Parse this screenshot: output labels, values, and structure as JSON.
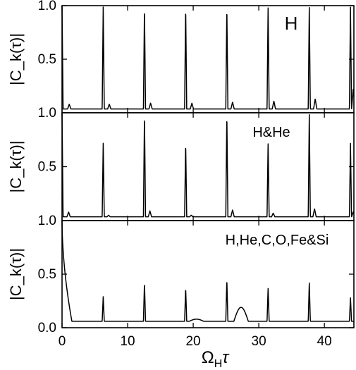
{
  "chart_data": {
    "type": "line",
    "xlabel": "Ω_Hτ",
    "xlabel_main": "Ω",
    "xlabel_sub": "H",
    "xlabel_tail": "τ",
    "xlim": [
      0,
      44.5
    ],
    "xticks": [
      0,
      10,
      20,
      30,
      40
    ],
    "xtick_labels": [
      "0",
      "10",
      "20",
      "30",
      "40"
    ],
    "shared_x_axis": true,
    "grid": false,
    "panels": [
      {
        "label": "H",
        "ylabel": "|C_k(τ)|",
        "ylim": [
          0,
          1
        ],
        "yticks": [
          0.5,
          1.0
        ],
        "ytick_labels": [
          "0.5",
          "1.0"
        ],
        "baseline": 0.035,
        "peaks": [
          {
            "x": 0.0,
            "y": 1.0
          },
          {
            "x": 6.28,
            "y": 0.99
          },
          {
            "x": 12.57,
            "y": 0.99
          },
          {
            "x": 18.85,
            "y": 0.99
          },
          {
            "x": 25.13,
            "y": 0.99
          },
          {
            "x": 31.42,
            "y": 0.99
          },
          {
            "x": 37.7,
            "y": 0.99
          },
          {
            "x": 43.98,
            "y": 0.99
          }
        ],
        "secondary_peaks": [
          {
            "x": 1.1,
            "y": 0.08
          },
          {
            "x": 7.2,
            "y": 0.08
          },
          {
            "x": 13.5,
            "y": 0.09
          },
          {
            "x": 19.8,
            "y": 0.09
          },
          {
            "x": 26.0,
            "y": 0.1
          },
          {
            "x": 32.3,
            "y": 0.11
          },
          {
            "x": 38.6,
            "y": 0.13
          },
          {
            "x": 44.4,
            "y": 0.22
          }
        ]
      },
      {
        "label": "H&He",
        "ylabel": "|C_k(τ)|",
        "ylim": [
          0,
          1
        ],
        "yticks": [
          0.5,
          1.0
        ],
        "ytick_labels": [
          "0.5",
          "1.0"
        ],
        "baseline": 0.035,
        "peaks": [
          {
            "x": 0.0,
            "y": 1.0
          },
          {
            "x": 6.28,
            "y": 0.72
          },
          {
            "x": 12.57,
            "y": 0.99
          },
          {
            "x": 18.85,
            "y": 0.72
          },
          {
            "x": 25.13,
            "y": 0.99
          },
          {
            "x": 31.42,
            "y": 0.72
          },
          {
            "x": 37.7,
            "y": 0.99
          },
          {
            "x": 43.98,
            "y": 0.72
          }
        ],
        "secondary_peaks": [
          {
            "x": 1.0,
            "y": 0.08
          },
          {
            "x": 7.1,
            "y": 0.05
          },
          {
            "x": 13.4,
            "y": 0.09
          },
          {
            "x": 19.7,
            "y": 0.05
          },
          {
            "x": 26.0,
            "y": 0.1
          },
          {
            "x": 32.2,
            "y": 0.07
          },
          {
            "x": 38.5,
            "y": 0.11
          },
          {
            "x": 44.4,
            "y": 0.08
          }
        ]
      },
      {
        "label": "H,He,C,O,Fe&Si",
        "ylabel": "|C_k(τ)|",
        "ylim": [
          0,
          1
        ],
        "yticks": [
          0.0,
          0.5,
          1.0
        ],
        "ytick_labels": [
          "0.0",
          "0.5",
          "1.0"
        ],
        "baseline": 0.06,
        "initial_decay": {
          "start": 1.0,
          "end_x": 1.5,
          "end_y": 0.06
        },
        "peaks": [
          {
            "x": 6.28,
            "y": 0.29
          },
          {
            "x": 12.57,
            "y": 0.42
          },
          {
            "x": 18.85,
            "y": 0.37
          },
          {
            "x": 25.13,
            "y": 0.45
          },
          {
            "x": 31.42,
            "y": 0.37
          },
          {
            "x": 37.7,
            "y": 0.42
          },
          {
            "x": 43.98,
            "y": 0.28
          }
        ],
        "bumps": [
          {
            "x": 20.5,
            "y": 0.08
          },
          {
            "x": 27.3,
            "y": 0.19
          }
        ]
      }
    ]
  }
}
